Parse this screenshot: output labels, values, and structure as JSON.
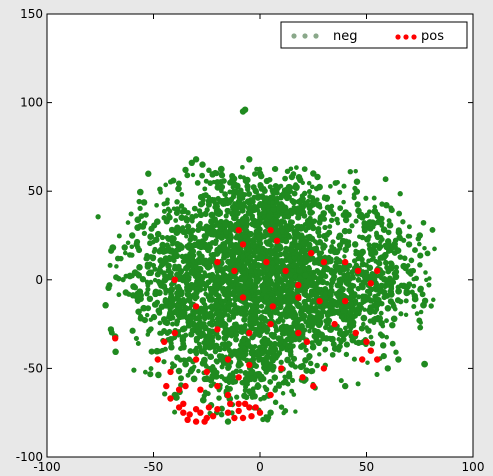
{
  "chart_data": {
    "type": "scatter",
    "title": "",
    "xlabel": "",
    "ylabel": "",
    "xlim": [
      -100,
      100
    ],
    "ylim": [
      -100,
      150
    ],
    "xticks": [
      -100,
      -50,
      0,
      50,
      100
    ],
    "yticks": [
      -100,
      -50,
      0,
      50,
      100,
      150
    ],
    "grid": false,
    "legend": {
      "placement": "top-right",
      "entries": [
        "neg",
        "pos"
      ]
    },
    "series": [
      {
        "name": "neg",
        "color": "#1f8a1f",
        "description_of_distribution": "dense cloud",
        "clusters": [
          {
            "cx": -5,
            "cy": 10,
            "sx": 20,
            "sy": 22,
            "n": 900
          },
          {
            "cx": 15,
            "cy": 0,
            "sx": 22,
            "sy": 22,
            "n": 700
          },
          {
            "cx": -25,
            "cy": -20,
            "sx": 16,
            "sy": 18,
            "n": 450
          },
          {
            "cx": 35,
            "cy": -15,
            "sx": 18,
            "sy": 14,
            "n": 350
          },
          {
            "cx": 0,
            "cy": 40,
            "sx": 18,
            "sy": 10,
            "n": 300
          },
          {
            "cx": -5,
            "cy": -50,
            "sx": 15,
            "sy": 12,
            "n": 250
          },
          {
            "cx": 55,
            "cy": 10,
            "sx": 14,
            "sy": 16,
            "n": 220
          },
          {
            "cx": -45,
            "cy": 10,
            "sx": 12,
            "sy": 16,
            "n": 200
          }
        ],
        "outliers": [
          [
            -7,
            96
          ],
          [
            -8,
            95
          ],
          [
            -30,
            68
          ],
          [
            -32,
            66
          ],
          [
            -27,
            65
          ],
          [
            -35,
            62
          ],
          [
            -5,
            68
          ],
          [
            0,
            60
          ],
          [
            25,
            60
          ],
          [
            27,
            58
          ],
          [
            -20,
            55
          ],
          [
            15,
            58
          ],
          [
            75,
            25
          ],
          [
            70,
            20
          ],
          [
            -68,
            -32
          ],
          [
            -70,
            -28
          ],
          [
            -55,
            30
          ],
          [
            -60,
            25
          ],
          [
            65,
            -45
          ],
          [
            60,
            -50
          ],
          [
            -15,
            -80
          ],
          [
            5,
            -75
          ],
          [
            -40,
            -65
          ],
          [
            40,
            -60
          ]
        ]
      },
      {
        "name": "pos",
        "color": "#ff0000",
        "points": [
          [
            -10,
            28
          ],
          [
            -8,
            20
          ],
          [
            5,
            28
          ],
          [
            8,
            22
          ],
          [
            24,
            15
          ],
          [
            30,
            10
          ],
          [
            -20,
            10
          ],
          [
            -12,
            5
          ],
          [
            3,
            10
          ],
          [
            12,
            5
          ],
          [
            18,
            -3
          ],
          [
            40,
            10
          ],
          [
            46,
            5
          ],
          [
            52,
            -2
          ],
          [
            55,
            5
          ],
          [
            -40,
            0
          ],
          [
            -30,
            -15
          ],
          [
            -8,
            -10
          ],
          [
            6,
            -15
          ],
          [
            18,
            -10
          ],
          [
            28,
            -12
          ],
          [
            40,
            -12
          ],
          [
            -20,
            -28
          ],
          [
            -5,
            -30
          ],
          [
            5,
            -25
          ],
          [
            18,
            -30
          ],
          [
            22,
            -35
          ],
          [
            35,
            -25
          ],
          [
            45,
            -30
          ],
          [
            50,
            -35
          ],
          [
            52,
            -40
          ],
          [
            55,
            -45
          ],
          [
            48,
            -45
          ],
          [
            -40,
            -30
          ],
          [
            -45,
            -35
          ],
          [
            -48,
            -45
          ],
          [
            -42,
            -52
          ],
          [
            -30,
            -45
          ],
          [
            -25,
            -52
          ],
          [
            -15,
            -45
          ],
          [
            -10,
            -55
          ],
          [
            -5,
            -48
          ],
          [
            10,
            -50
          ],
          [
            20,
            -55
          ],
          [
            25,
            -60
          ],
          [
            30,
            -50
          ],
          [
            -35,
            -60
          ],
          [
            -38,
            -62
          ],
          [
            -28,
            -62
          ],
          [
            -20,
            -60
          ],
          [
            -15,
            -65
          ],
          [
            -10,
            -70
          ],
          [
            -42,
            -67
          ],
          [
            -38,
            -72
          ],
          [
            -36,
            -75
          ],
          [
            -33,
            -76
          ],
          [
            -30,
            -73
          ],
          [
            -28,
            -75
          ],
          [
            -25,
            -78
          ],
          [
            -22,
            -77
          ],
          [
            -34,
            -79
          ],
          [
            -30,
            -80
          ],
          [
            -26,
            -80
          ],
          [
            -20,
            -73
          ],
          [
            -15,
            -75
          ],
          [
            -10,
            -74
          ],
          [
            -5,
            -72
          ],
          [
            0,
            -75
          ],
          [
            -8,
            -78
          ],
          [
            -12,
            -78
          ],
          [
            -4,
            -77
          ],
          [
            -2,
            -72
          ],
          [
            -7,
            -70
          ],
          [
            -14,
            -70
          ],
          [
            -24,
            -72
          ],
          [
            -36,
            -70
          ],
          [
            -44,
            -60
          ],
          [
            -68,
            -33
          ],
          [
            5,
            -65
          ]
        ]
      }
    ]
  }
}
